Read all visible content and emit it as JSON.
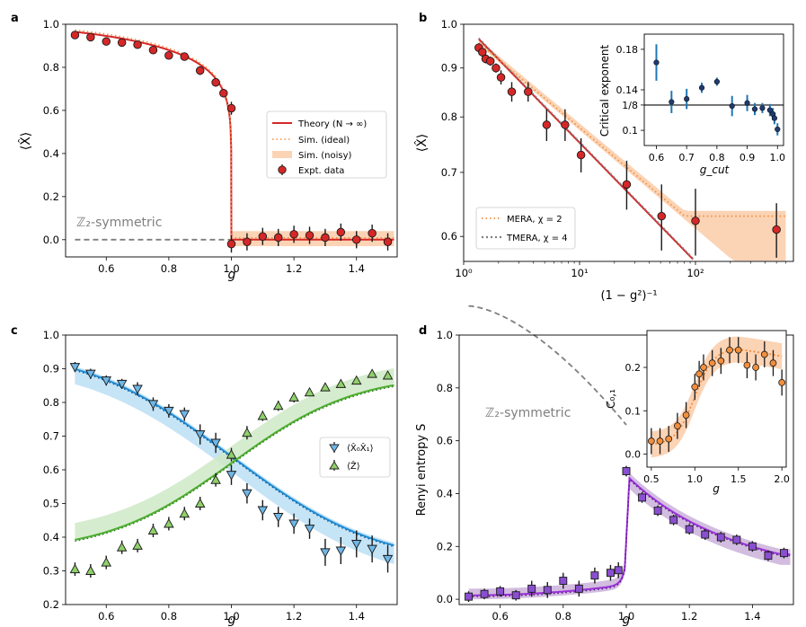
{
  "colors": {
    "red": "#d62728",
    "orange": "#f28e3c",
    "orange_light": "#fbd3b5",
    "gray": "#7f7f7f",
    "dark": "#222222",
    "blue": "#1f8dd6",
    "blue_light": "#bfe1f5",
    "blue_marker": "#6fb7e6",
    "steel": "#1f77b4",
    "green": "#4cae2e",
    "green_light": "#cfe9c7",
    "green_marker": "#8fd06a",
    "purple": "#9b30d9",
    "purple_light": "#d2bde0",
    "purple_marker": "#8a4fd0",
    "inset_marker": "#1f3b73"
  },
  "chart_data": [
    {
      "panel": "a",
      "type": "line",
      "xlabel": "g",
      "ylabel": "⟨X̂⟩",
      "xlim": [
        0.47,
        1.53
      ],
      "ylim": [
        -0.08,
        1.0
      ],
      "xticks": [
        0.6,
        0.8,
        1.0,
        1.2,
        1.4
      ],
      "xtick_labels": [
        "0.6",
        "0.8",
        "1.0",
        "1.2",
        "1.4"
      ],
      "yticks": [
        0.0,
        0.2,
        0.4,
        0.6,
        0.8,
        1.0
      ],
      "ytick_labels": [
        "0.0",
        "0.2",
        "0.4",
        "0.6",
        "0.8",
        "1.0"
      ],
      "annotation": "ℤ₂-symmetric",
      "legend": [
        "Theory (N → ∞)",
        "Sim. (ideal)",
        "Sim. (noisy)",
        "Expt. data"
      ],
      "experiment": {
        "x": [
          0.5,
          0.55,
          0.6,
          0.65,
          0.7,
          0.75,
          0.8,
          0.85,
          0.9,
          0.95,
          0.975,
          1.0,
          1.0,
          1.05,
          1.1,
          1.15,
          1.2,
          1.25,
          1.3,
          1.35,
          1.4,
          1.45,
          1.5
        ],
        "y": [
          0.95,
          0.94,
          0.92,
          0.915,
          0.905,
          0.88,
          0.855,
          0.85,
          0.785,
          0.73,
          0.68,
          0.61,
          -0.02,
          -0.01,
          0.015,
          0.01,
          0.025,
          0.02,
          0.01,
          0.035,
          0.0,
          0.03,
          -0.01
        ],
        "err": [
          0.01,
          0.01,
          0.01,
          0.01,
          0.01,
          0.01,
          0.01,
          0.01,
          0.02,
          0.02,
          0.02,
          0.03,
          0.04,
          0.04,
          0.04,
          0.04,
          0.04,
          0.04,
          0.04,
          0.04,
          0.04,
          0.04,
          0.04
        ]
      }
    },
    {
      "panel": "b",
      "type": "line",
      "xlabel": "(1 − g²)⁻¹",
      "ylabel": "⟨X̂⟩",
      "xscale": "log",
      "yscale": "log",
      "xlim": [
        1,
        700
      ],
      "ylim": [
        0.565,
        1.0
      ],
      "xticks": [
        1,
        10,
        100
      ],
      "xtick_labels": [
        "10⁰",
        "10¹",
        "10²"
      ],
      "yticks": [
        0.6,
        0.7,
        0.8,
        0.9,
        1.0
      ],
      "ytick_labels": [
        "0.6",
        "0.7",
        "0.8",
        "0.9",
        "1.0"
      ],
      "legend": [
        "MERA, χ = 2",
        "TMERA, χ = 4"
      ],
      "experiment": {
        "x": [
          1.35,
          1.45,
          1.55,
          1.7,
          1.9,
          2.1,
          2.6,
          3.6,
          5.2,
          7.5,
          10.3,
          25.5,
          51,
          100,
          500
        ],
        "y": [
          0.945,
          0.935,
          0.92,
          0.915,
          0.9,
          0.88,
          0.85,
          0.85,
          0.785,
          0.785,
          0.73,
          0.68,
          0.63,
          0.623,
          0.61
        ],
        "err": [
          0.01,
          0.01,
          0.01,
          0.01,
          0.01,
          0.015,
          0.02,
          0.02,
          0.03,
          0.03,
          0.03,
          0.04,
          0.05,
          0.05,
          0.04
        ]
      },
      "inset": {
        "xlabel": "g_cut",
        "ylabel": "Critical exponent",
        "xlim": [
          0.56,
          1.02
        ],
        "ylim": [
          0.085,
          0.195
        ],
        "xticks": [
          0.6,
          0.7,
          0.8,
          0.9,
          1.0
        ],
        "xtick_labels": [
          "0.6",
          "0.7",
          "0.8",
          "0.9",
          "1.0"
        ],
        "yticks": [
          0.1,
          0.125,
          0.14,
          0.18
        ],
        "ytick_labels": [
          "0.1",
          "1/8",
          "0.14",
          "0.18"
        ],
        "reference": 0.125,
        "x": [
          0.6,
          0.65,
          0.7,
          0.75,
          0.8,
          0.85,
          0.9,
          0.925,
          0.95,
          0.975,
          0.985,
          0.99,
          1.0
        ],
        "y": [
          0.167,
          0.128,
          0.131,
          0.142,
          0.148,
          0.124,
          0.127,
          0.121,
          0.122,
          0.12,
          0.116,
          0.112,
          0.101
        ],
        "err": [
          0.018,
          0.011,
          0.01,
          0.005,
          0.004,
          0.01,
          0.008,
          0.006,
          0.005,
          0.006,
          0.006,
          0.006,
          0.006
        ]
      }
    },
    {
      "panel": "c",
      "type": "line",
      "xlabel": "g",
      "ylabel": "",
      "xlim": [
        0.47,
        1.53
      ],
      "ylim": [
        0.2,
        1.0
      ],
      "xticks": [
        0.6,
        0.8,
        1.0,
        1.2,
        1.4
      ],
      "xtick_labels": [
        "0.6",
        "0.8",
        "1.0",
        "1.2",
        "1.4"
      ],
      "yticks": [
        0.2,
        0.3,
        0.4,
        0.5,
        0.6,
        0.7,
        0.8,
        0.9,
        1.0
      ],
      "ytick_labels": [
        "0.2",
        "0.3",
        "0.4",
        "0.5",
        "0.6",
        "0.7",
        "0.8",
        "0.9",
        "1.0"
      ],
      "legend": [
        "⟨X̂₀X̂₁⟩",
        "⟨Ẑ⟩"
      ],
      "series": [
        {
          "name": "⟨X̂₀X̂₁⟩",
          "x": [
            0.5,
            0.55,
            0.6,
            0.65,
            0.7,
            0.75,
            0.8,
            0.85,
            0.9,
            0.95,
            1.0,
            1.05,
            1.1,
            1.15,
            1.2,
            1.25,
            1.3,
            1.35,
            1.4,
            1.45,
            1.5
          ],
          "y": [
            0.905,
            0.885,
            0.865,
            0.855,
            0.84,
            0.795,
            0.775,
            0.765,
            0.705,
            0.68,
            0.585,
            0.53,
            0.48,
            0.46,
            0.44,
            0.425,
            0.355,
            0.36,
            0.38,
            0.365,
            0.335
          ],
          "err": [
            0.015,
            0.015,
            0.015,
            0.015,
            0.02,
            0.02,
            0.02,
            0.02,
            0.03,
            0.03,
            0.03,
            0.03,
            0.03,
            0.03,
            0.03,
            0.03,
            0.04,
            0.04,
            0.04,
            0.04,
            0.04
          ]
        },
        {
          "name": "⟨Ẑ⟩",
          "x": [
            0.5,
            0.55,
            0.6,
            0.65,
            0.7,
            0.75,
            0.8,
            0.85,
            0.9,
            0.95,
            1.0,
            1.05,
            1.1,
            1.15,
            1.2,
            1.25,
            1.3,
            1.35,
            1.4,
            1.45,
            1.5
          ],
          "y": [
            0.305,
            0.3,
            0.325,
            0.37,
            0.375,
            0.42,
            0.44,
            0.47,
            0.5,
            0.57,
            0.645,
            0.71,
            0.76,
            0.79,
            0.815,
            0.83,
            0.845,
            0.855,
            0.865,
            0.885,
            0.88
          ],
          "err": [
            0.02,
            0.02,
            0.02,
            0.02,
            0.02,
            0.02,
            0.02,
            0.02,
            0.02,
            0.02,
            0.02,
            0.02,
            0.015,
            0.015,
            0.015,
            0.01,
            0.01,
            0.01,
            0.01,
            0.01,
            0.01
          ]
        }
      ]
    },
    {
      "panel": "d",
      "type": "line",
      "xlabel": "g",
      "ylabel": "Renyi entropy S",
      "xlim": [
        0.47,
        1.53
      ],
      "ylim": [
        -0.02,
        1.0
      ],
      "xticks": [
        0.6,
        0.8,
        1.0,
        1.2,
        1.4
      ],
      "xtick_labels": [
        "0.6",
        "0.8",
        "1.0",
        "1.2",
        "1.4"
      ],
      "yticks": [
        0.0,
        0.2,
        0.4,
        0.6,
        0.8,
        1.0
      ],
      "ytick_labels": [
        "0.0",
        "0.2",
        "0.4",
        "0.6",
        "0.8",
        "1.0"
      ],
      "annotation": "ℤ₂-symmetric",
      "experiment": {
        "x": [
          0.5,
          0.55,
          0.6,
          0.65,
          0.7,
          0.75,
          0.8,
          0.85,
          0.9,
          0.95,
          0.975,
          1.0,
          1.05,
          1.1,
          1.15,
          1.2,
          1.25,
          1.3,
          1.35,
          1.4,
          1.45,
          1.5
        ],
        "y": [
          0.01,
          0.02,
          0.03,
          0.015,
          0.04,
          0.035,
          0.07,
          0.04,
          0.09,
          0.1,
          0.11,
          0.485,
          0.385,
          0.335,
          0.3,
          0.265,
          0.245,
          0.235,
          0.225,
          0.2,
          0.165,
          0.175
        ],
        "err": [
          0.02,
          0.02,
          0.02,
          0.02,
          0.03,
          0.03,
          0.03,
          0.03,
          0.03,
          0.03,
          0.03,
          0.02,
          0.02,
          0.02,
          0.02,
          0.02,
          0.02,
          0.02,
          0.02,
          0.02,
          0.02,
          0.02
        ]
      },
      "inset": {
        "xlabel": "g",
        "ylabel": "C₀,₁",
        "xlim": [
          0.45,
          2.05
        ],
        "ylim": [
          -0.03,
          0.285
        ],
        "xticks": [
          0.5,
          1.0,
          1.5,
          2.0
        ],
        "xtick_labels": [
          "0.5",
          "1.0",
          "1.5",
          "2.0"
        ],
        "yticks": [
          0.0,
          0.1,
          0.2
        ],
        "ytick_labels": [
          "0.0",
          "0.1",
          "0.2"
        ],
        "x": [
          0.5,
          0.6,
          0.7,
          0.8,
          0.9,
          1.0,
          1.05,
          1.1,
          1.2,
          1.3,
          1.4,
          1.5,
          1.6,
          1.7,
          1.8,
          1.9,
          2.0
        ],
        "y": [
          0.03,
          0.03,
          0.035,
          0.065,
          0.09,
          0.155,
          0.185,
          0.2,
          0.21,
          0.215,
          0.24,
          0.24,
          0.205,
          0.2,
          0.23,
          0.21,
          0.165
        ],
        "err": [
          0.03,
          0.03,
          0.03,
          0.03,
          0.03,
          0.03,
          0.03,
          0.03,
          0.03,
          0.03,
          0.03,
          0.03,
          0.03,
          0.03,
          0.03,
          0.03,
          0.03
        ]
      }
    }
  ]
}
